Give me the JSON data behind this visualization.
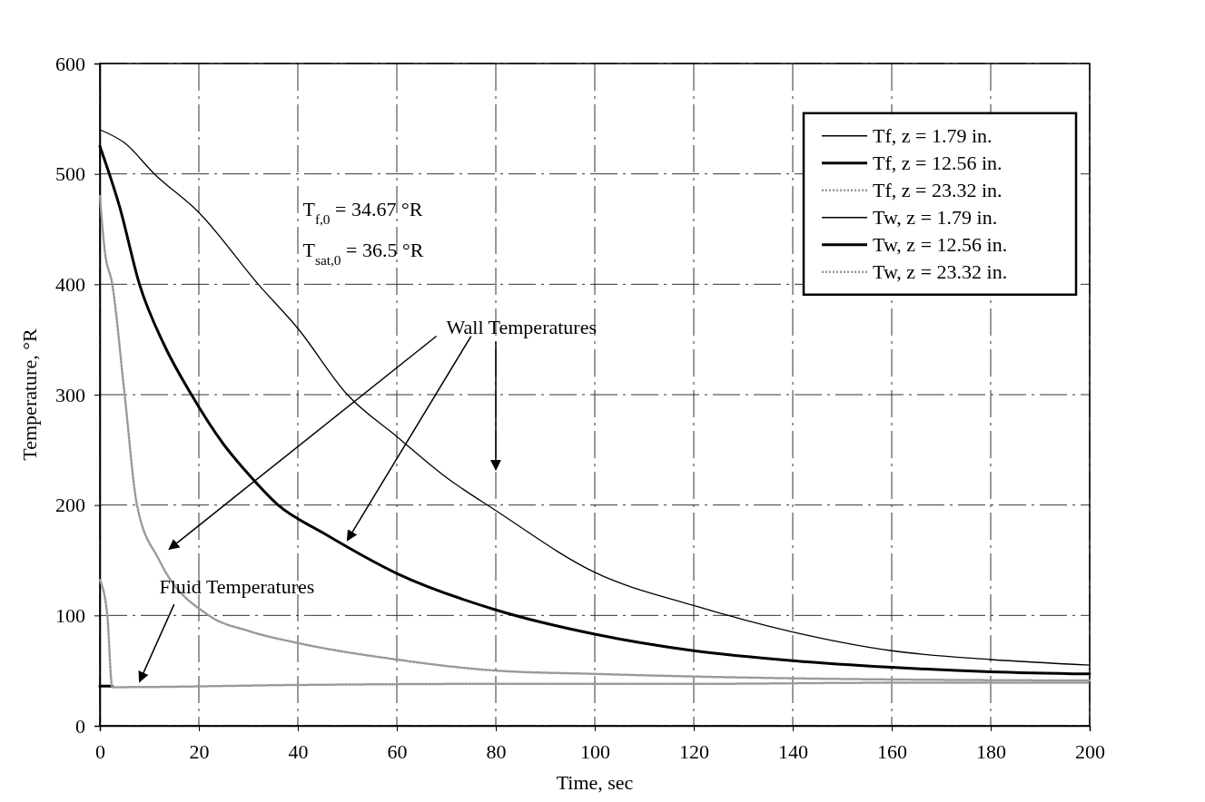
{
  "chart_data": {
    "type": "line",
    "xlabel": "Time, sec",
    "ylabel": "Temperature, °R",
    "xlim": [
      0,
      200
    ],
    "ylim": [
      0,
      600
    ],
    "xticks": [
      0,
      20,
      40,
      60,
      80,
      100,
      120,
      140,
      160,
      180,
      200
    ],
    "yticks": [
      0,
      100,
      200,
      300,
      400,
      500,
      600
    ],
    "grid": true,
    "legend": "top right",
    "series": [
      {
        "name": "Tf, z = 1.79 in.",
        "color": "#000000",
        "line_style": "solid"
      },
      {
        "name": "Tf, z = 12.56 in.",
        "color": "#000000",
        "line_style": "solid",
        "x": [
          0,
          2.5
        ],
        "values": [
          36,
          36
        ]
      },
      {
        "name": "Tf, z = 23.32 in.",
        "color": "#999999",
        "line_style": "dotted",
        "x": [
          0,
          1.5,
          2.5,
          40,
          80,
          120,
          160,
          200
        ],
        "values": [
          132,
          100,
          35,
          37,
          38,
          38,
          39,
          39
        ]
      },
      {
        "name": "Tw, z = 1.79 in.",
        "color": "#000000",
        "line_style": "solid",
        "x": [
          0,
          5,
          11,
          20,
          32,
          40,
          50,
          60,
          70,
          80,
          100,
          120,
          140,
          160,
          180,
          200
        ],
        "values": [
          540,
          528,
          500,
          465,
          400,
          360,
          300,
          262,
          225,
          195,
          139,
          109,
          85,
          68,
          60,
          55
        ]
      },
      {
        "name": "Tw, z = 12.56 in.",
        "color": "#000000",
        "line_style": "solid",
        "x": [
          0,
          4,
          8,
          13,
          18.5,
          25,
          30,
          36,
          45,
          60,
          80,
          100,
          120,
          140,
          160,
          180,
          200
        ],
        "values": [
          525,
          470,
          400,
          345,
          300,
          255,
          228,
          200,
          175,
          138,
          105,
          83,
          68,
          59,
          53,
          49,
          47
        ]
      },
      {
        "name": "Tw, z = 23.32 in.",
        "color": "#999999",
        "line_style": "dotted",
        "x": [
          0,
          1,
          2.5,
          5,
          7.5,
          12,
          22,
          30,
          40,
          60,
          80,
          100,
          140,
          200
        ],
        "values": [
          480,
          430,
          400,
          300,
          200,
          150,
          100,
          86,
          75,
          60,
          50,
          47,
          43,
          41
        ]
      }
    ],
    "annotations": [
      "T$_{f,0}$ = 34.67 °R",
      "T$_{sat,0}$ = 36.5 °R",
      "Wall Temperatures",
      "Fluid Temperatures"
    ]
  }
}
